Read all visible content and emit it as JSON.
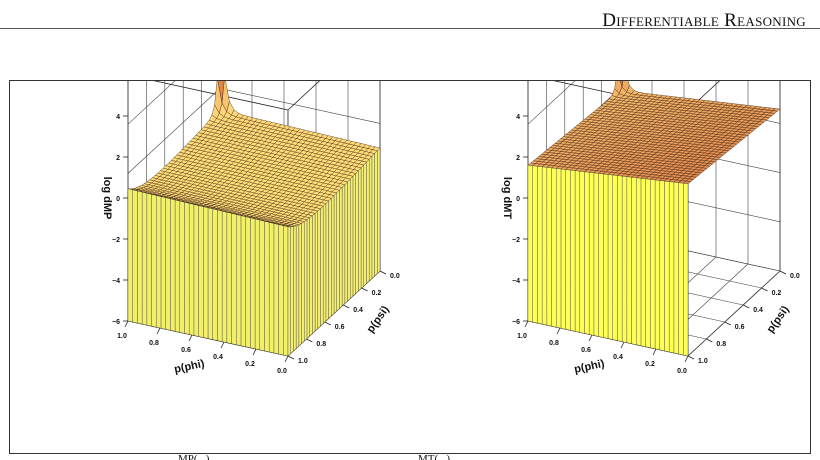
{
  "header": {
    "title": "Differentiable Reasoning"
  },
  "figure": {
    "caption_left": "MP(...)",
    "caption_right": "MT(...)"
  },
  "chart_data": [
    {
      "type": "surface",
      "id": "mp",
      "xlabel": "p(phi)",
      "ylabel": "p(psi)",
      "zlabel": "log dMP",
      "x_ticks": [
        "1.0",
        "0.8",
        "0.6",
        "0.4",
        "0.2",
        "0.0"
      ],
      "y_ticks": [
        "1.0",
        "0.8",
        "0.6",
        "0.4",
        "0.2",
        "0.0"
      ],
      "z_ticks": [
        "4",
        "2",
        "0",
        "−2",
        "−4",
        "−6"
      ],
      "zlim": [
        -6,
        6
      ],
      "colormap": [
        "#c22018",
        "#d96a3a",
        "#ffd37a",
        "#ffff66"
      ]
    },
    {
      "type": "surface",
      "id": "mt",
      "xlabel": "p(phi)",
      "ylabel": "p(psi)",
      "zlabel": "log dMT",
      "x_ticks": [
        "1.0",
        "0.8",
        "0.6",
        "0.4",
        "0.2",
        "0.0"
      ],
      "y_ticks": [
        "1.0",
        "0.8",
        "0.6",
        "0.4",
        "0.2",
        "0.0"
      ],
      "z_ticks": [
        "4",
        "2",
        "0",
        "−2",
        "−4",
        "−6"
      ],
      "zlim": [
        -6,
        6
      ],
      "colormap": [
        "#c22018",
        "#d96a3a",
        "#ffd37a",
        "#ffff66"
      ]
    }
  ]
}
